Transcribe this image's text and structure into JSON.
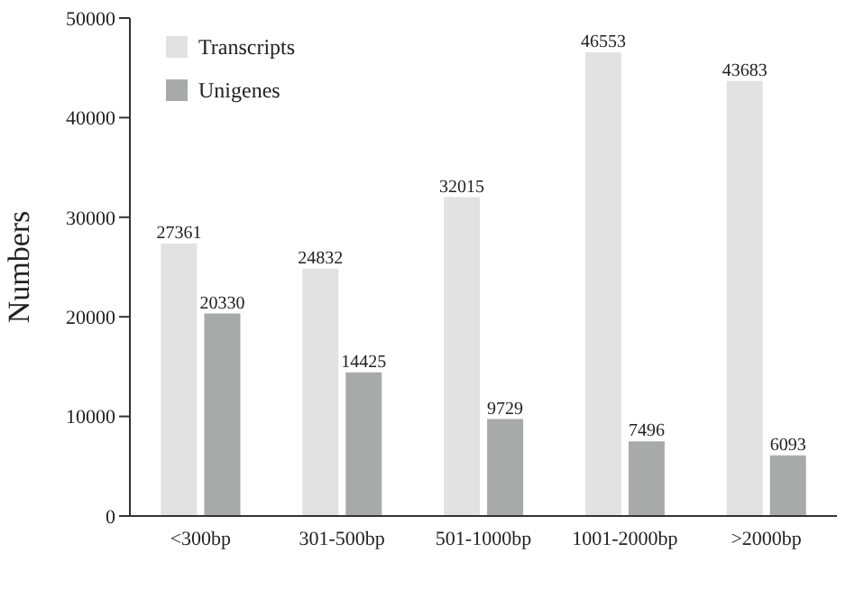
{
  "chart_data": {
    "type": "bar",
    "ylabel": "Numbers",
    "categories": [
      "<300bp",
      "301-500bp",
      "501-1000bp",
      "1001-2000bp",
      ">2000bp"
    ],
    "series": [
      {
        "name": "Transcripts",
        "color": "#e2e2e2",
        "values": [
          27361,
          24832,
          32015,
          46553,
          43683
        ]
      },
      {
        "name": "Unigenes",
        "color": "#a8aaaa",
        "values": [
          20330,
          14425,
          9729,
          7496,
          6093
        ]
      }
    ],
    "ylim": [
      0,
      50000
    ],
    "yticks": [
      0,
      10000,
      20000,
      30000,
      40000,
      50000
    ],
    "grid": false,
    "legend": "top left",
    "data_labels": true
  }
}
